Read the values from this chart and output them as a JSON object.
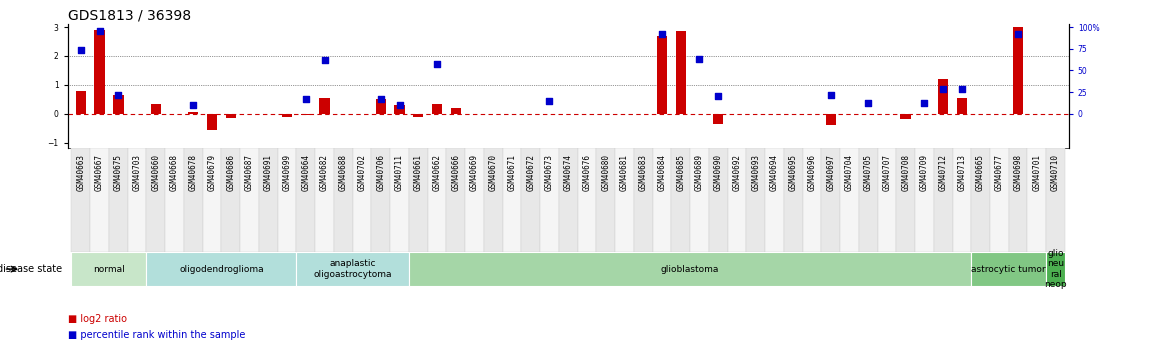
{
  "title": "GDS1813 / 36398",
  "samples": [
    "GSM40663",
    "GSM40667",
    "GSM40675",
    "GSM40703",
    "GSM40660",
    "GSM40668",
    "GSM40678",
    "GSM40679",
    "GSM40686",
    "GSM40687",
    "GSM40691",
    "GSM40699",
    "GSM40664",
    "GSM40682",
    "GSM40688",
    "GSM40702",
    "GSM40706",
    "GSM40711",
    "GSM40661",
    "GSM40662",
    "GSM40666",
    "GSM40669",
    "GSM40670",
    "GSM40671",
    "GSM40672",
    "GSM40673",
    "GSM40674",
    "GSM40676",
    "GSM40680",
    "GSM40681",
    "GSM40683",
    "GSM40684",
    "GSM40685",
    "GSM40689",
    "GSM40690",
    "GSM40692",
    "GSM40693",
    "GSM40694",
    "GSM40695",
    "GSM40696",
    "GSM40697",
    "GSM40704",
    "GSM40705",
    "GSM40707",
    "GSM40708",
    "GSM40709",
    "GSM40712",
    "GSM40713",
    "GSM40665",
    "GSM40677",
    "GSM40698",
    "GSM40701",
    "GSM40710"
  ],
  "log2_ratio": [
    0.8,
    2.9,
    0.65,
    0.0,
    0.35,
    0.0,
    0.05,
    -0.55,
    -0.15,
    0.0,
    0.0,
    -0.1,
    -0.05,
    0.55,
    0.0,
    0.0,
    0.5,
    0.3,
    -0.1,
    0.35,
    0.18,
    0.0,
    0.0,
    0.0,
    0.0,
    0.0,
    0.0,
    0.0,
    0.0,
    0.0,
    0.0,
    2.7,
    2.85,
    0.0,
    -0.35,
    0.0,
    0.0,
    0.0,
    0.0,
    0.0,
    -0.4,
    0.0,
    0.0,
    0.0,
    -0.2,
    0.0,
    1.2,
    0.55,
    0.0,
    0.0,
    3.0,
    0.0,
    0.0
  ],
  "percentile_rank_pct": [
    73,
    95,
    22,
    null,
    null,
    null,
    10,
    null,
    null,
    null,
    null,
    null,
    17,
    62,
    null,
    null,
    17,
    10,
    null,
    57,
    null,
    null,
    null,
    null,
    null,
    15,
    null,
    null,
    null,
    null,
    null,
    92,
    null,
    63,
    20,
    null,
    null,
    null,
    null,
    null,
    22,
    null,
    12,
    null,
    null,
    12,
    28,
    28,
    null,
    null,
    92,
    null,
    null
  ],
  "disease_groups": [
    {
      "label": "normal",
      "start": 0,
      "end": 4,
      "color": "#c8e6c9"
    },
    {
      "label": "oligodendroglioma",
      "start": 4,
      "end": 12,
      "color": "#b2dfdb"
    },
    {
      "label": "anaplastic\noligoastrocytoma",
      "start": 12,
      "end": 18,
      "color": "#b2dfdb"
    },
    {
      "label": "glioblastoma",
      "start": 18,
      "end": 48,
      "color": "#a5d6a7"
    },
    {
      "label": "astrocytic tumor",
      "start": 48,
      "end": 52,
      "color": "#81c784"
    },
    {
      "label": "glio\nneu\nral\nneop",
      "start": 52,
      "end": 53,
      "color": "#4caf50"
    }
  ],
  "bar_color": "#cc0000",
  "dot_color": "#0000cc",
  "zero_line_color": "#cc0000",
  "grid_line_color": "#333333",
  "ylim": [
    -1.2,
    3.1
  ],
  "y_ticks": [
    -1,
    0,
    1,
    2,
    3
  ],
  "right_yticks": [
    0,
    25,
    50,
    75,
    100
  ],
  "background_color": "#ffffff",
  "title_fontsize": 10,
  "tick_fontsize": 5.5,
  "label_fontsize": 7
}
